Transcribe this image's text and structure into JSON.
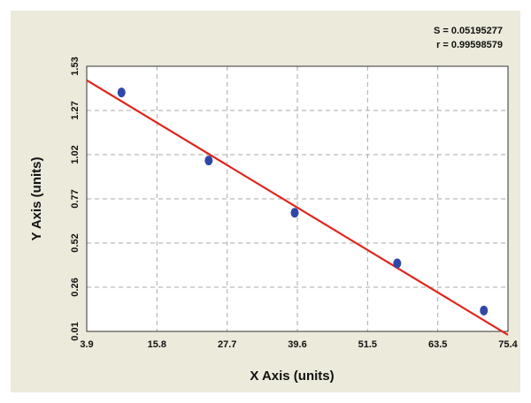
{
  "stats": {
    "s_label": "S = 0.05195277",
    "r_label": "r = 0.99598579"
  },
  "chart_data": {
    "type": "scatter",
    "title": "",
    "xlabel": "X Axis (units)",
    "ylabel": "Y Axis (units)",
    "xlim": [
      3.9,
      75.4
    ],
    "ylim": [
      0.01,
      1.53
    ],
    "x_ticks": [
      "3.9",
      "15.8",
      "27.7",
      "39.6",
      "51.5",
      "63.5",
      "75.4"
    ],
    "y_ticks": [
      "0.01",
      "0.26",
      "0.52",
      "0.77",
      "1.02",
      "1.27",
      "1.53"
    ],
    "grid": true,
    "points": [
      {
        "x": 9.8,
        "y": 1.38
      },
      {
        "x": 24.6,
        "y": 0.99
      },
      {
        "x": 39.2,
        "y": 0.69
      },
      {
        "x": 56.6,
        "y": 0.4
      },
      {
        "x": 71.3,
        "y": 0.13
      }
    ],
    "fit_line": {
      "x": [
        3.9,
        75.4
      ],
      "y": [
        1.45,
        -0.01
      ]
    },
    "colors": {
      "point": "#2f47a8",
      "fit_line": "#e0261c",
      "grid": "#aaaaaa",
      "plot_background": "#ffffff",
      "figure_background": "#ebeadb"
    }
  }
}
